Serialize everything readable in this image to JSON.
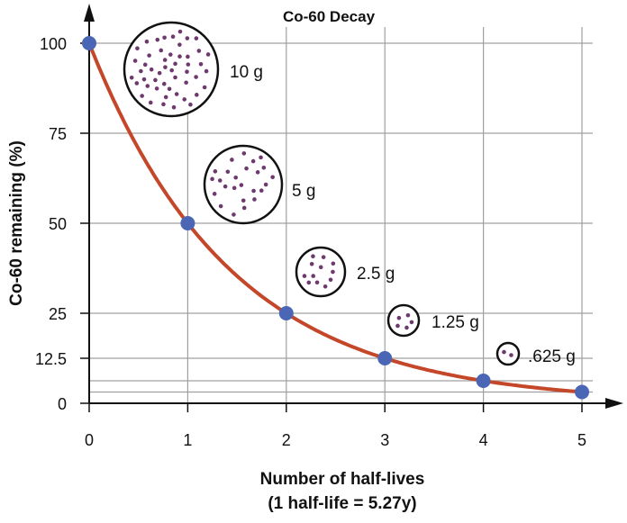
{
  "chart_data": {
    "type": "line",
    "title": "Co-60 Decay",
    "xlabel": "Number of half-lives",
    "xlabel_sub": "(1 half-life = 5.27y)",
    "ylabel": "Co-60 remaining (%)",
    "x": [
      0,
      1,
      2,
      3,
      4,
      5
    ],
    "y": [
      100,
      50,
      25,
      12.5,
      6.25,
      3.125
    ],
    "xlim": [
      0,
      5
    ],
    "ylim": [
      0,
      100
    ],
    "x_ticks": [
      "0",
      "1",
      "2",
      "3",
      "4",
      "5"
    ],
    "y_ticks": [
      {
        "value": 100,
        "label": "100"
      },
      {
        "value": 75,
        "label": "75"
      },
      {
        "value": 50,
        "label": "50"
      },
      {
        "value": 25,
        "label": "25"
      },
      {
        "value": 12.5,
        "label": "12.5"
      },
      {
        "value": 0,
        "label": "0"
      }
    ],
    "extra_gridlines": [
      6.25,
      3.125
    ],
    "grid": true,
    "annotations": [
      {
        "label": "10 g",
        "dots": 50
      },
      {
        "label": "5 g",
        "dots": 25
      },
      {
        "label": "2.5 g",
        "dots": 12
      },
      {
        "label": "1.25 g",
        "dots": 6
      },
      {
        "label": ".625 g",
        "dots": 3
      }
    ],
    "colors": {
      "curve": "#c4472a",
      "points": "#4a66b5",
      "dots": "#6e3a6e",
      "grid": "#a0a0a0"
    }
  }
}
